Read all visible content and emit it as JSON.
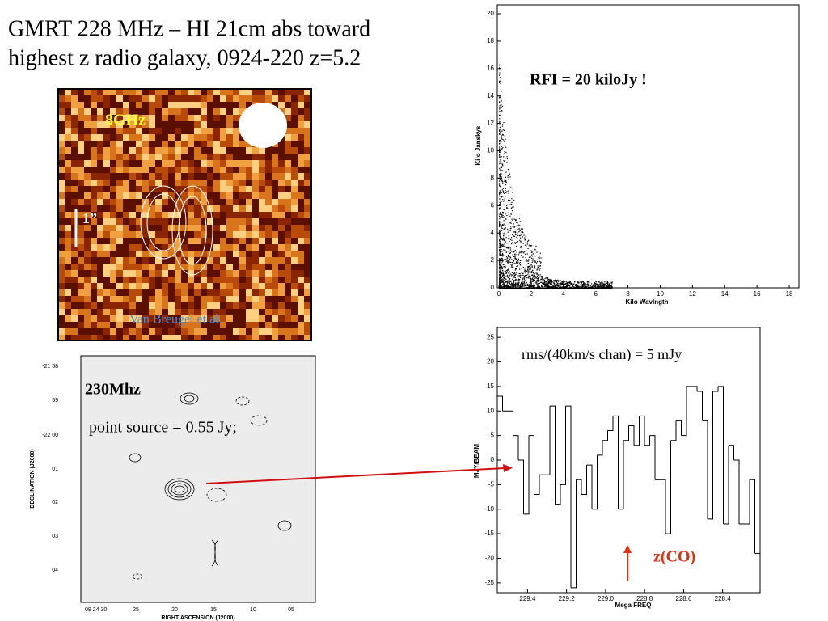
{
  "title": [
    "GMRT 228 MHz  – HI 21cm abs toward",
    "highest z radio galaxy, 0924-220 z=5.2"
  ],
  "optical": {
    "band": "8GHz",
    "scale": "1”",
    "credit": "Van Breugel et al."
  },
  "map230": {
    "label": "230Mhz",
    "note": "point source = 0.55 Jy;",
    "ylabel": "DECLINATION (J2000)",
    "xlabel": "RIGHT ASCENSION (J2000)",
    "yticks": [
      "-21 58",
      "59",
      "-22 00",
      "01",
      "02",
      "03",
      "04"
    ],
    "xticks": [
      "09 24 30",
      "25",
      "20",
      "15",
      "10",
      "05"
    ]
  },
  "rfi": {
    "annotation": "RFI = 20 kiloJy !",
    "ylabel": "Kilo Janskys",
    "xlabel": "Kilo Wavlngth",
    "xlim": [
      -0.1,
      18.6
    ],
    "ylim": [
      0,
      20.65
    ],
    "xticks": [
      0,
      2,
      4,
      6,
      8,
      10,
      12,
      14,
      16,
      18
    ],
    "yticks": [
      0,
      2,
      4,
      6,
      8,
      10,
      12,
      14,
      16,
      18,
      20
    ]
  },
  "spectrum": {
    "annotation": "rms/(40km/s chan) = 5 mJy",
    "marker": "z(CO)",
    "ylabel": "MJY/BEAM",
    "xlabel": "Mega FREQ",
    "xlim": [
      229.555,
      228.208
    ],
    "ylim": [
      -27,
      27
    ],
    "xticks": [
      229.4,
      229.2,
      {
        "value": 229,
        "label": "229.0"
      },
      228.8,
      228.6,
      228.4
    ],
    "yticks": [
      -25,
      -20,
      -15,
      -10,
      -5,
      0,
      5,
      10,
      15,
      20,
      25
    ],
    "values": [
      13,
      10,
      10,
      5,
      0,
      -11,
      5,
      -7,
      -3,
      -3,
      11,
      -9,
      -5,
      11,
      -26,
      -4,
      -7,
      -1,
      -10,
      1,
      4,
      6,
      9,
      -10,
      4,
      7,
      3,
      9,
      3,
      5,
      -4,
      -4,
      -15,
      4,
      8,
      5,
      15,
      15,
      14,
      8,
      -12,
      14,
      15,
      -13,
      3,
      0,
      -13,
      -13,
      -4,
      -19
    ]
  }
}
